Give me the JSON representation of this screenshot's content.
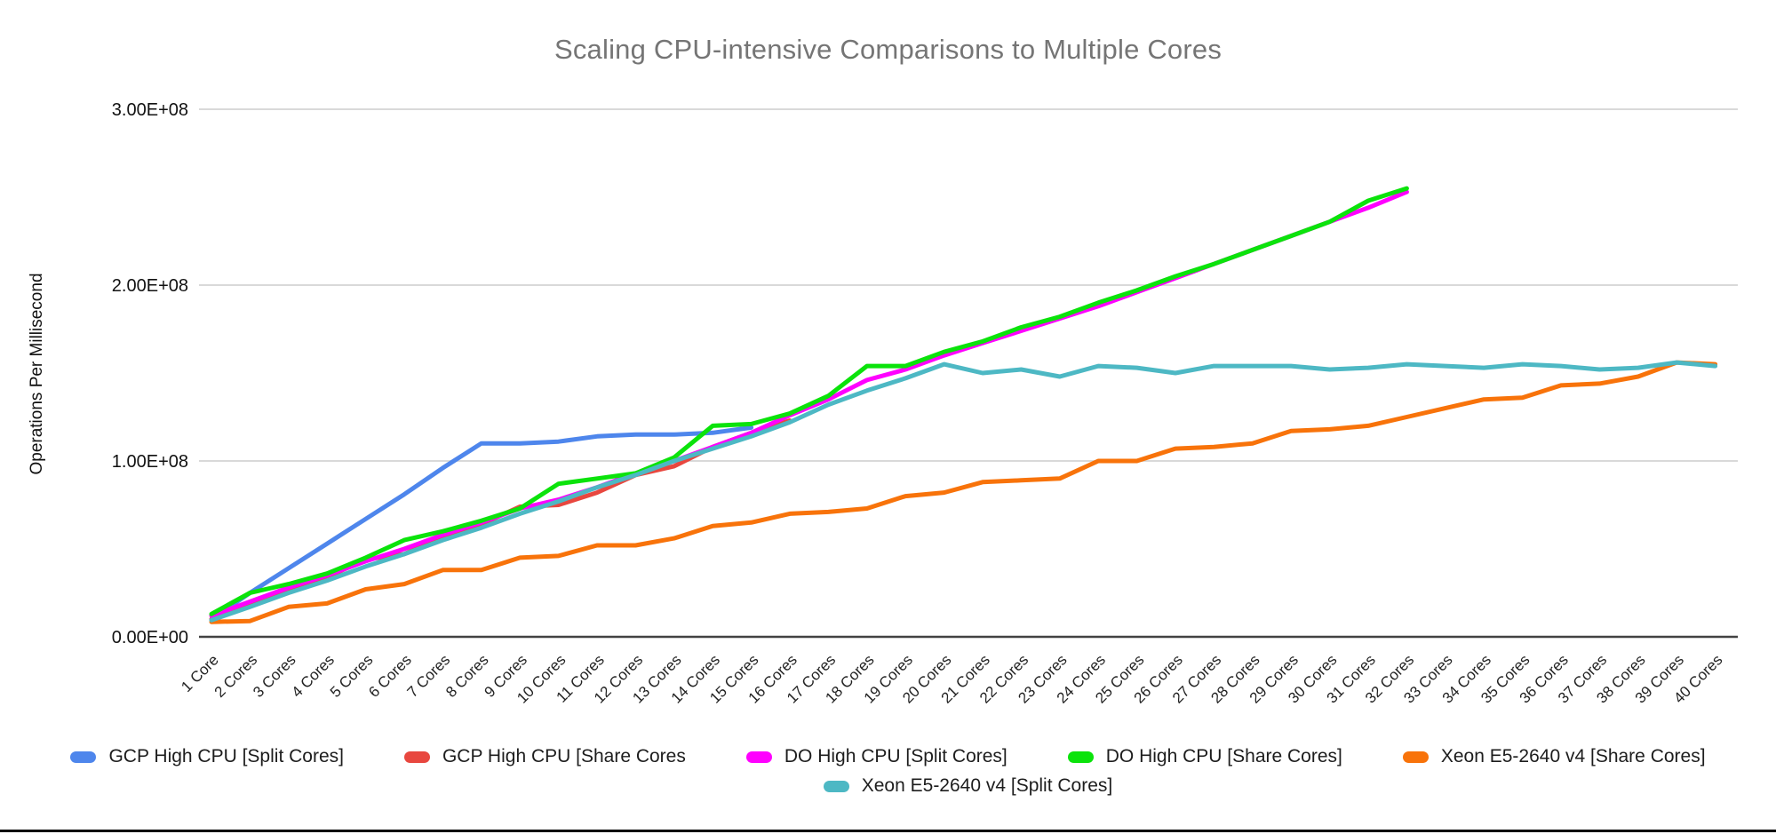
{
  "chart": {
    "title": "Scaling CPU-intensive Comparisons to Multiple Cores",
    "title_color": "#757575",
    "y_axis_title": "Operations Per Millisecond"
  },
  "chart_data": {
    "type": "line",
    "title": "Scaling CPU-intensive Comparisons to Multiple Cores",
    "xlabel": "",
    "ylabel": "Operations Per Millisecond",
    "ylim": [
      0,
      300000000
    ],
    "grid": true,
    "legend_position": "bottom",
    "y_ticks": [
      {
        "label": "0.00E+00",
        "value": 0
      },
      {
        "label": "1.00E+08",
        "value": 100000000.0
      },
      {
        "label": "2.00E+08",
        "value": 200000000.0
      },
      {
        "label": "3.00E+08",
        "value": 300000000.0
      }
    ],
    "categories": [
      "1 Core",
      "2 Cores",
      "3 Cores",
      "4 Cores",
      "5 Cores",
      "6 Cores",
      "7 Cores",
      "8 Cores",
      "9 Cores",
      "10 Cores",
      "11 Cores",
      "12 Cores",
      "13 Cores",
      "14 Cores",
      "15 Cores",
      "16 Cores",
      "17 Cores",
      "18 Cores",
      "19 Cores",
      "20 Cores",
      "21 Cores",
      "22 Cores",
      "23 Cores",
      "24 Cores",
      "25 Cores",
      "26 Cores",
      "27 Cores",
      "28 Cores",
      "29 Cores",
      "30 Cores",
      "31 Cores",
      "32 Cores",
      "33 Cores",
      "34 Cores",
      "35 Cores",
      "36 Cores",
      "37 Cores",
      "38 Cores",
      "39 Cores",
      "40 Cores"
    ],
    "series": [
      {
        "name": "GCP High CPU [Split Cores]",
        "color": "#4e86ec",
        "values": [
          10000000.0,
          25000000.0,
          39000000.0,
          53000000.0,
          67000000.0,
          81000000.0,
          96000000.0,
          110000000.0,
          110000000.0,
          111000000.0,
          114000000.0,
          115000000.0,
          115000000.0,
          116000000.0,
          119000000.0
        ]
      },
      {
        "name": "GCP High CPU [Share Cores",
        "color": "#e8473f",
        "values": [
          10000000.0,
          19000000.0,
          27000000.0,
          34000000.0,
          44000000.0,
          47000000.0,
          57000000.0,
          64000000.0,
          74000000.0,
          75000000.0,
          82000000.0,
          92000000.0,
          97000000.0,
          108000000.0,
          116000000.0,
          123000000.0
        ]
      },
      {
        "name": "DO High CPU [Split Cores]",
        "color": "#ff00ff",
        "values": [
          12000000.0,
          20000000.0,
          28000000.0,
          35000000.0,
          43000000.0,
          50000000.0,
          58000000.0,
          65000000.0,
          73000000.0,
          78000000.0,
          85000000.0,
          93000000.0,
          100000000.0,
          108000000.0,
          116000000.0,
          126000000.0,
          135000000.0,
          146000000.0,
          152000000.0,
          160000000.0,
          167000000.0,
          174000000.0,
          181000000.0,
          188000000.0,
          196000000.0,
          204000000.0,
          212000000.0,
          220000000.0,
          228000000.0,
          236000000.0,
          244000000.0,
          253000000.0
        ]
      },
      {
        "name": "DO High CPU [Share Cores]",
        "color": "#0be30b",
        "values": [
          13000000.0,
          25000000.0,
          30000000.0,
          36000000.0,
          45000000.0,
          55000000.0,
          60000000.0,
          66000000.0,
          73000000.0,
          87000000.0,
          90000000.0,
          93000000.0,
          102000000.0,
          120000000.0,
          121000000.0,
          127000000.0,
          137000000.0,
          154000000.0,
          154000000.0,
          162000000.0,
          168000000.0,
          176000000.0,
          182000000.0,
          190000000.0,
          197000000.0,
          205000000.0,
          212000000.0,
          220000000.0,
          228000000.0,
          236000000.0,
          248000000.0,
          255000000.0
        ]
      },
      {
        "name": "Xeon E5-2640 v4 [Share Cores]",
        "color": "#f8730a",
        "values": [
          8500000.0,
          9000000.0,
          17000000.0,
          19000000.0,
          27000000.0,
          30000000.0,
          38000000.0,
          38000000.0,
          45000000.0,
          46000000.0,
          52000000.0,
          52000000.0,
          56000000.0,
          63000000.0,
          65000000.0,
          70000000.0,
          71000000.0,
          73000000.0,
          80000000.0,
          82000000.0,
          88000000.0,
          89000000.0,
          90000000.0,
          100000000.0,
          100000000.0,
          107000000.0,
          108000000.0,
          110000000.0,
          117000000.0,
          118000000.0,
          120000000.0,
          125000000.0,
          130000000.0,
          135000000.0,
          136000000.0,
          143000000.0,
          144000000.0,
          148000000.0,
          156000000.0,
          155000000.0
        ]
      },
      {
        "name": "Xeon E5-2640 v4 [Split Cores]",
        "color": "#4db8c4",
        "values": [
          9500000.0,
          17000000.0,
          25000000.0,
          32000000.0,
          40000000.0,
          47000000.0,
          55000000.0,
          62000000.0,
          70000000.0,
          77000000.0,
          85000000.0,
          92000000.0,
          100000000.0,
          107000000.0,
          114000000.0,
          122000000.0,
          132000000.0,
          140000000.0,
          147000000.0,
          155000000.0,
          150000000.0,
          152000000.0,
          148000000.0,
          154000000.0,
          153000000.0,
          150000000.0,
          154000000.0,
          154000000.0,
          154000000.0,
          152000000.0,
          153000000.0,
          155000000.0,
          154000000.0,
          153000000.0,
          155000000.0,
          154000000.0,
          152000000.0,
          153000000.0,
          156000000.0,
          154000000.0
        ]
      }
    ]
  },
  "style": {
    "gridline_color": "#d9d9d9",
    "baseline_color": "#424242",
    "tick_label_color": "#111111",
    "x_label_color": "#222222"
  }
}
